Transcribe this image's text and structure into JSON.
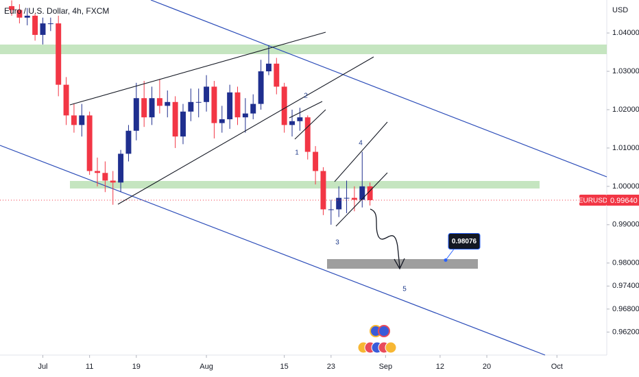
{
  "chart_data": {
    "type": "candlestick",
    "title": "Euro / U.S. Dollar, 4h, FXCM",
    "y_axis_label": "USD",
    "symbol": "EURUSD",
    "up_color": "#1f2f8f",
    "down_color": "#f23645",
    "x": [
      -4,
      -3,
      -2,
      -1,
      0,
      1,
      2,
      3,
      4,
      5,
      6,
      7,
      8,
      9,
      10,
      11,
      12,
      13,
      14,
      15,
      16,
      17,
      18,
      19,
      20,
      21,
      22,
      23,
      24,
      25,
      26,
      27,
      28,
      29,
      30,
      31,
      32,
      33,
      34,
      35,
      36,
      37,
      38,
      39,
      40,
      41,
      42
    ],
    "open": [
      1.047,
      1.046,
      1.044,
      1.0445,
      1.0395,
      1.0425,
      1.0425,
      1.0265,
      1.0185,
      1.016,
      1.0185,
      1.004,
      1.0035,
      1.0015,
      1.001,
      1.0085,
      1.0145,
      1.023,
      1.018,
      1.023,
      1.021,
      1.022,
      1.013,
      1.0195,
      1.022,
      1.022,
      1.026,
      1.0165,
      1.0175,
      1.0245,
      1.018,
      1.019,
      1.0215,
      1.03,
      1.032,
      1.026,
      1.016,
      1.017,
      1.018,
      1.009,
      1.004,
      0.994,
      0.994,
      0.997,
      0.997,
      0.9965,
      1.0
    ],
    "high": [
      1.0485,
      1.0475,
      1.0465,
      1.045,
      1.044,
      1.044,
      1.0445,
      1.0285,
      1.0215,
      1.0215,
      1.0195,
      1.0075,
      1.0065,
      1.004,
      1.0095,
      1.016,
      1.027,
      1.0275,
      1.026,
      1.028,
      1.025,
      1.0235,
      1.0215,
      1.0255,
      1.0255,
      1.029,
      1.0275,
      1.021,
      1.0265,
      1.026,
      1.023,
      1.024,
      1.033,
      1.0368,
      1.0335,
      1.027,
      1.02,
      1.0205,
      1.0185,
      1.0105,
      1.005,
      0.9965,
      1.0,
      1.0015,
      1.0,
      1.009,
      1.001
    ],
    "low": [
      1.0445,
      1.0425,
      1.042,
      1.038,
      1.037,
      1.0405,
      1.0235,
      1.016,
      1.014,
      1.013,
      1.003,
      1.0,
      0.9985,
      0.9952,
      0.9985,
      1.0065,
      1.012,
      1.0155,
      1.016,
      1.019,
      1.018,
      1.01,
      1.011,
      1.017,
      1.018,
      1.0195,
      1.0125,
      1.014,
      1.015,
      1.016,
      1.014,
      1.0175,
      1.02,
      1.029,
      1.024,
      1.014,
      1.013,
      1.0145,
      1.007,
      1.0005,
      0.9925,
      0.99,
      0.992,
      0.993,
      0.9935,
      0.9945,
      0.995
    ],
    "close": [
      1.046,
      1.044,
      1.0445,
      1.0395,
      1.0425,
      1.0425,
      1.0265,
      1.0185,
      1.016,
      1.0185,
      1.004,
      1.0035,
      1.0015,
      1.001,
      1.0085,
      1.0145,
      1.023,
      1.018,
      1.023,
      1.021,
      1.022,
      1.013,
      1.0195,
      1.022,
      1.022,
      1.026,
      1.0165,
      1.0175,
      1.0245,
      1.018,
      1.019,
      1.0215,
      1.03,
      1.032,
      1.026,
      1.016,
      1.017,
      1.018,
      1.009,
      1.004,
      0.994,
      0.994,
      0.997,
      0.997,
      0.9965,
      1.0,
      0.9964
    ],
    "xlim": [
      -5.5,
      72.4
    ],
    "xticks": [
      {
        "value": 0,
        "label": "Jul"
      },
      {
        "value": 6,
        "label": "11"
      },
      {
        "value": 12,
        "label": "19"
      },
      {
        "value": 21,
        "label": "Aug"
      },
      {
        "value": 31,
        "label": "15"
      },
      {
        "value": 37,
        "label": "23"
      },
      {
        "value": 44,
        "label": "Sep"
      },
      {
        "value": 51,
        "label": "12"
      },
      {
        "value": 57,
        "label": "20"
      },
      {
        "value": 66,
        "label": "Oct"
      }
    ],
    "ylim": [
      0.956,
      1.0486
    ],
    "yticks": [
      {
        "value": 1.04,
        "label": "1.04000"
      },
      {
        "value": 1.03,
        "label": "1.03000"
      },
      {
        "value": 1.02,
        "label": "1.02000"
      },
      {
        "value": 1.01,
        "label": "1.01000"
      },
      {
        "value": 1.0,
        "label": "1.00000"
      },
      {
        "value": 0.99,
        "label": "0.99000"
      },
      {
        "value": 0.98,
        "label": "0.98000"
      },
      {
        "value": 0.974,
        "label": "0.97400"
      },
      {
        "value": 0.968,
        "label": "0.96800"
      },
      {
        "value": 0.962,
        "label": "0.96200"
      }
    ],
    "grid": false,
    "last_price": {
      "value": 0.9964,
      "label": "0.99640"
    },
    "target": {
      "value": 0.98076,
      "label": "0.98076"
    },
    "annotations": [
      "1",
      "2",
      "3",
      "4",
      "5"
    ]
  }
}
